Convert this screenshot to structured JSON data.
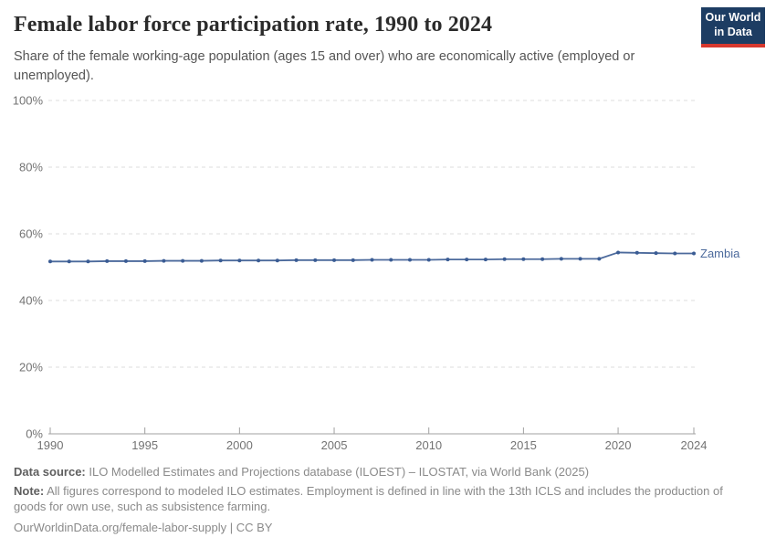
{
  "header": {
    "title": "Female labor force participation rate, 1990 to 2024",
    "subtitle": "Share of the female working-age population (ages 15 and over) who are economically active (employed or unemployed).",
    "logo": {
      "line1": "Our World",
      "line2": "in Data"
    }
  },
  "chart_data": {
    "type": "line",
    "title": "Female labor force participation rate, 1990 to 2024",
    "x": [
      1990,
      1991,
      1992,
      1993,
      1994,
      1995,
      1996,
      1997,
      1998,
      1999,
      2000,
      2001,
      2002,
      2003,
      2004,
      2005,
      2006,
      2007,
      2008,
      2009,
      2010,
      2011,
      2012,
      2013,
      2014,
      2015,
      2016,
      2017,
      2018,
      2019,
      2020,
      2021,
      2022,
      2023,
      2024
    ],
    "series": [
      {
        "name": "Zambia",
        "color": "#4C6A9C",
        "point_color": "#3a5c94",
        "values": [
          51.7,
          51.7,
          51.7,
          51.8,
          51.8,
          51.8,
          51.9,
          51.9,
          51.9,
          52.0,
          52.0,
          52.0,
          52.0,
          52.1,
          52.1,
          52.1,
          52.1,
          52.2,
          52.2,
          52.2,
          52.2,
          52.3,
          52.3,
          52.3,
          52.4,
          52.4,
          52.4,
          52.5,
          52.5,
          52.5,
          54.4,
          54.3,
          54.2,
          54.1,
          54.1
        ]
      }
    ],
    "xlabel": "",
    "ylabel": "",
    "xlim": [
      1990,
      2024
    ],
    "ylim": [
      0,
      100
    ],
    "x_ticks": [
      1990,
      1995,
      2000,
      2005,
      2010,
      2015,
      2020,
      2024
    ],
    "y_ticks": [
      0,
      20,
      40,
      60,
      80,
      100
    ],
    "y_tick_suffix": "%",
    "grid": "horizontal-dashed",
    "legend_position": "line-end-label",
    "colors": {
      "gridline": "#dddddd",
      "axis": "#a0a0a0",
      "tick_label": "#737373"
    }
  },
  "footer": {
    "data_source_label": "Data source:",
    "data_source_text": " ILO Modelled Estimates and Projections database (ILOEST) – ILOSTAT, via World Bank (2025)",
    "note_label": "Note:",
    "note_text": " All figures correspond to modeled ILO estimates. Employment is defined in line with the 13th ICLS and includes the production of goods for own use, such as subsistence farming.",
    "license": "OurWorldinData.org/female-labor-supply | CC BY"
  }
}
